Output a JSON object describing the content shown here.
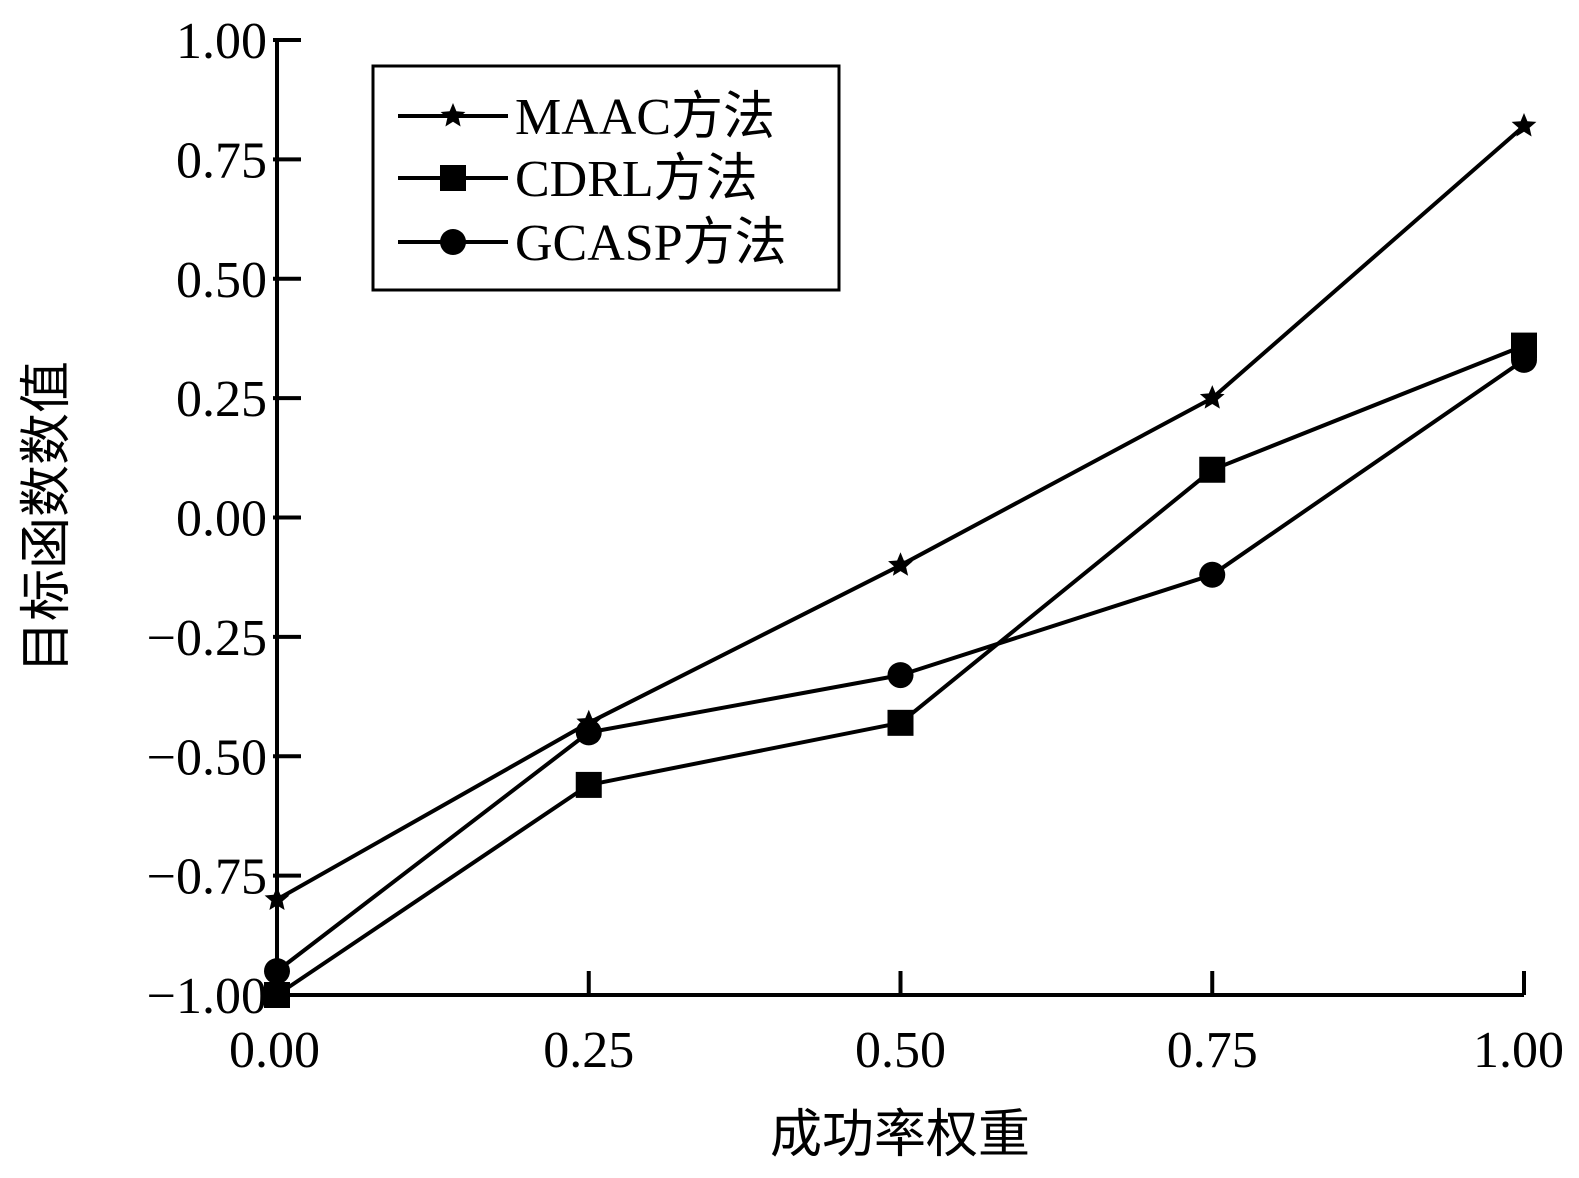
{
  "chart_data": {
    "type": "line",
    "xlabel": "成功率权重",
    "ylabel": "目标函数数值",
    "x": [
      0.0,
      0.25,
      0.5,
      0.75,
      1.0
    ],
    "xlim": [
      0,
      1
    ],
    "ylim": [
      -1,
      1
    ],
    "xticks": [
      "0.00",
      "0.25",
      "0.50",
      "0.75",
      "1.00"
    ],
    "yticks": [
      "−1.00",
      "−0.75",
      "−0.50",
      "−0.25",
      "0.00",
      "0.25",
      "0.50",
      "0.75",
      "1.00"
    ],
    "grid": false,
    "legend_position": "top-left",
    "series": [
      {
        "name": "MAAC方法",
        "marker": "star",
        "values": [
          -0.8,
          -0.43,
          -0.1,
          0.25,
          0.82
        ]
      },
      {
        "name": "CDRL方法",
        "marker": "square",
        "values": [
          -1.0,
          -0.56,
          -0.43,
          0.1,
          0.36
        ]
      },
      {
        "name": "GCASP方法",
        "marker": "circle",
        "values": [
          -0.95,
          -0.45,
          -0.33,
          -0.12,
          0.33
        ]
      }
    ],
    "colors": {
      "line": "#000000",
      "background": "#ffffff"
    }
  }
}
